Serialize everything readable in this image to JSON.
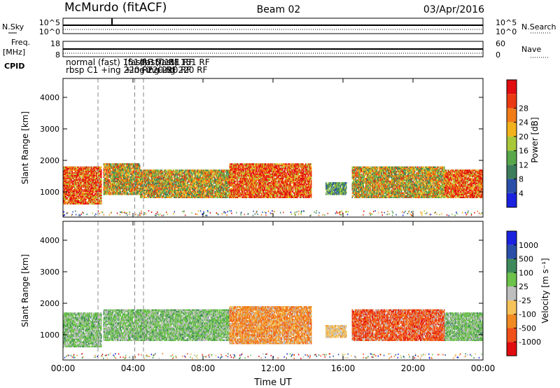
{
  "header": {
    "station": "McMurdo (fitACF)",
    "beam": "Beam 02",
    "date": "03/Apr/2016"
  },
  "summary_panels": {
    "nsky_label": "N.Sky",
    "nsearch_label": "N.Search",
    "noise_ticks_left": [
      "10^5",
      "10^0"
    ],
    "noise_ticks_right": [
      "10^5",
      "10^0"
    ],
    "freq_label": "Freq.",
    "freq_unit": "[MHz]",
    "freq_ticks": [
      "18",
      "8"
    ],
    "nave_label": "Nave",
    "nave_ticks": [
      "60",
      "0"
    ],
    "cpid_label": "CPID",
    "cpid_rows": [
      [
        "normal (fast) 151 RF",
        "(fast) 151 RF",
        "(fast) 151 RF",
        "(fast) 151 RF"
      ],
      [
        "rbsp C1 +ing 220 RF",
        "+ing 220 RF",
        "+ing 220 RF",
        "+ing 220 RF"
      ]
    ]
  },
  "chart_data": [
    {
      "type": "heatmap",
      "name": "power",
      "xlabel": "",
      "ylabel": "Slant Range [km]",
      "x_ticks": [
        "00:00",
        "04:00",
        "08:00",
        "12:00",
        "16:00",
        "20:00",
        "00:00"
      ],
      "xlim_hours": [
        0,
        24
      ],
      "y_ticks": [
        1000,
        2000,
        3000,
        4000
      ],
      "ylim": [
        200,
        4600
      ],
      "colorbar": {
        "label": "Power [dB]",
        "ticks": [
          "4",
          "8",
          "12",
          "16",
          "20",
          "24",
          "28"
        ],
        "colors": [
          "#1a22e0",
          "#2a4fa8",
          "#3e7d5c",
          "#58a84a",
          "#a8c83a",
          "#f2b21c",
          "#f07c18",
          "#ea3a14",
          "#e00c10"
        ]
      },
      "echo_regions": [
        {
          "x": [
            0.0,
            2.2
          ],
          "range_km": [
            600,
            1800
          ],
          "level": "high"
        },
        {
          "x": [
            2.3,
            4.4
          ],
          "range_km": [
            900,
            1900
          ],
          "level": "medium"
        },
        {
          "x": [
            4.4,
            9.5
          ],
          "range_km": [
            800,
            1700
          ],
          "level": "medium"
        },
        {
          "x": [
            9.5,
            14.2
          ],
          "range_km": [
            800,
            1900
          ],
          "level": "high"
        },
        {
          "x": [
            15.0,
            16.2
          ],
          "range_km": [
            900,
            1300
          ],
          "level": "low"
        },
        {
          "x": [
            16.5,
            21.8
          ],
          "range_km": [
            800,
            1800
          ],
          "level": "medium"
        },
        {
          "x": [
            21.8,
            24.0
          ],
          "range_km": [
            800,
            1700
          ],
          "level": "high"
        }
      ]
    },
    {
      "type": "heatmap",
      "name": "velocity",
      "xlabel": "Time UT",
      "ylabel": "Slant Range [km]",
      "x_ticks": [
        "00:00",
        "04:00",
        "08:00",
        "12:00",
        "16:00",
        "20:00",
        "00:00"
      ],
      "xlim_hours": [
        0,
        24
      ],
      "y_ticks": [
        1000,
        2000,
        3000,
        4000
      ],
      "ylim": [
        200,
        4600
      ],
      "colorbar": {
        "label": "Velocity [m s⁻¹]",
        "ticks": [
          "1000",
          "500",
          "100",
          "25",
          "-25",
          "-100",
          "-500",
          "-1000"
        ],
        "colors": [
          "#1a22e0",
          "#2a4fa8",
          "#3e8a5c",
          "#6cc24a",
          "#bebebe",
          "#f5c35a",
          "#f08a22",
          "#f0501a",
          "#e00c10"
        ]
      },
      "echo_regions": [
        {
          "x": [
            0.0,
            2.2
          ],
          "range_km": [
            600,
            1700
          ],
          "velocity": "100"
        },
        {
          "x": [
            2.3,
            9.5
          ],
          "range_km": [
            800,
            1800
          ],
          "velocity": "100"
        },
        {
          "x": [
            9.5,
            14.2
          ],
          "range_km": [
            700,
            1900
          ],
          "velocity": "-100"
        },
        {
          "x": [
            15.0,
            16.2
          ],
          "range_km": [
            900,
            1300
          ],
          "velocity": "-25"
        },
        {
          "x": [
            16.5,
            21.8
          ],
          "range_km": [
            800,
            1800
          ],
          "velocity": "-500"
        },
        {
          "x": [
            21.8,
            24.0
          ],
          "range_km": [
            800,
            1700
          ],
          "velocity": "100"
        }
      ]
    }
  ]
}
